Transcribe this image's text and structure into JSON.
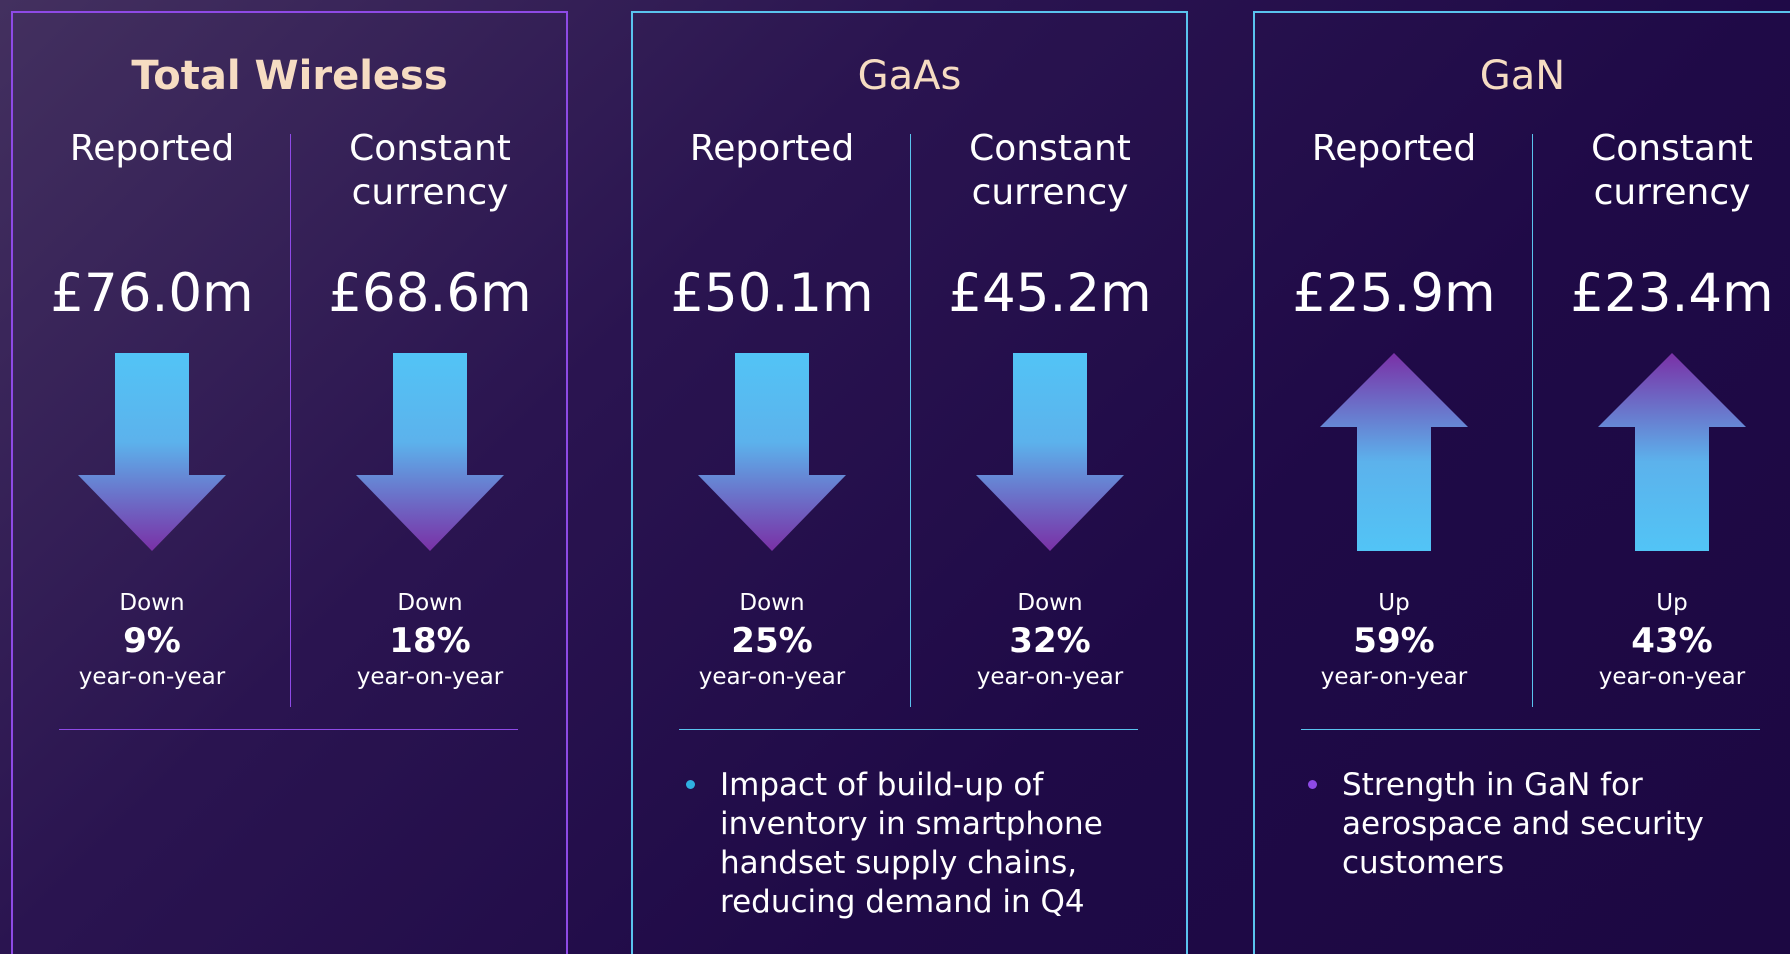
{
  "panels": [
    {
      "title": "Total Wireless",
      "border": "#8e4ae6",
      "bullet_color": "#8e4ae6",
      "title_weight": "bold",
      "columns": [
        {
          "label": "Reported",
          "value": "£76.0m",
          "arrow": "down",
          "change": "Down",
          "percent": "9%",
          "period": "year-on-year"
        },
        {
          "label": "Constant currency",
          "value": "£68.6m",
          "arrow": "down",
          "change": "Down",
          "percent": "18%",
          "period": "year-on-year"
        }
      ],
      "bullets": []
    },
    {
      "title": "GaAs",
      "border": "#5ac3ee",
      "bullet_color": "#2fb0e0",
      "title_weight": "normal",
      "columns": [
        {
          "label": "Reported",
          "value": "£50.1m",
          "arrow": "down",
          "change": "Down",
          "percent": "25%",
          "period": "year-on-year"
        },
        {
          "label": "Constant currency",
          "value": "£45.2m",
          "arrow": "down",
          "change": "Down",
          "percent": "32%",
          "period": "year-on-year"
        }
      ],
      "bullets": [
        "Impact of build-up of inventory in smartphone handset supply chains, reducing demand in Q4"
      ]
    },
    {
      "title": "GaN",
      "border": "#5ac3ee",
      "bullet_color": "#8e4ae6",
      "title_weight": "normal",
      "columns": [
        {
          "label": "Reported",
          "value": "£25.9m",
          "arrow": "up",
          "change": "Up",
          "percent": "59%",
          "period": "year-on-year"
        },
        {
          "label": "Constant currency",
          "value": "£23.4m",
          "arrow": "up",
          "change": "Up",
          "percent": "43%",
          "period": "year-on-year"
        }
      ],
      "bullets": [
        "Strength in GaN for aerospace and security customers"
      ]
    }
  ]
}
